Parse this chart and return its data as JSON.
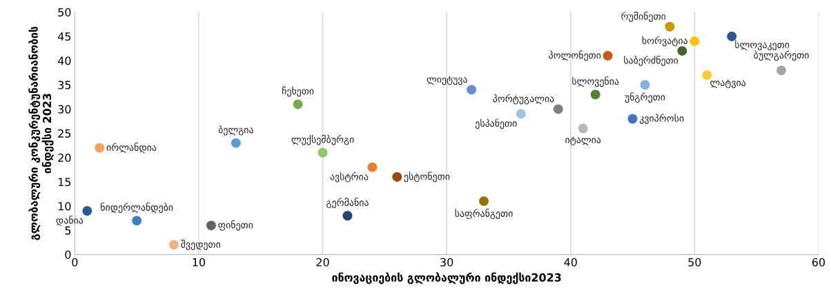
{
  "chart_data": {
    "type": "scatter",
    "xlabel": "ინოვაციების გლობალური ინდექსი2023",
    "ylabel": "გლობალური კონკურენტუნარიანობის\nინდექსი 2023",
    "xlim": [
      0,
      60
    ],
    "ylim": [
      0,
      50
    ],
    "xticks": [
      0,
      10,
      20,
      30,
      40,
      50,
      60
    ],
    "yticks": [
      0,
      5,
      10,
      15,
      20,
      25,
      30,
      35,
      40,
      45,
      50
    ],
    "grid": "x",
    "legend": false,
    "marker": "circle",
    "series": [
      {
        "name": "დანია",
        "color": "#255e91",
        "x": [
          1
        ],
        "values": [
          9
        ]
      },
      {
        "name": "ნიდერლანდები",
        "color": "#3c7dc4",
        "x": [
          5
        ],
        "values": [
          7
        ]
      },
      {
        "name": "შვედეთი",
        "color": "#f4b183",
        "x": [
          8
        ],
        "values": [
          2
        ]
      },
      {
        "name": "ფინეთი",
        "color": "#636363",
        "x": [
          11
        ],
        "values": [
          6
        ]
      },
      {
        "name": "ირლანდია",
        "color": "#f4a460",
        "x": [
          2
        ],
        "values": [
          22
        ]
      },
      {
        "name": "ბელგია",
        "color": "#5b9bd5",
        "x": [
          13
        ],
        "values": [
          23
        ]
      },
      {
        "name": "ჩეხეთი",
        "color": "#70ad47",
        "x": [
          18
        ],
        "values": [
          31
        ]
      },
      {
        "name": "ლუქსემბურგი",
        "color": "#8fc965",
        "x": [
          20
        ],
        "values": [
          21
        ]
      },
      {
        "name": "გერმანია",
        "color": "#264478",
        "x": [
          22
        ],
        "values": [
          8
        ]
      },
      {
        "name": "ავსტრია",
        "color": "#ed7d31",
        "x": [
          24
        ],
        "values": [
          18
        ]
      },
      {
        "name": "ესტონეთი",
        "color": "#9e480e",
        "x": [
          26
        ],
        "values": [
          16
        ]
      },
      {
        "name": "ლიეტუვა",
        "color": "#698ed0",
        "x": [
          32
        ],
        "values": [
          34
        ]
      },
      {
        "name": "საფრანგეთი",
        "color": "#997300",
        "x": [
          33
        ],
        "values": [
          11
        ]
      },
      {
        "name": "ესპანეთი",
        "color": "#9dc3e6",
        "x": [
          36
        ],
        "values": [
          29
        ]
      },
      {
        "name": "პორტუგალია",
        "color": "#7f7f7f",
        "x": [
          39
        ],
        "values": [
          30
        ]
      },
      {
        "name": "იტალია",
        "color": "#b7b7b7",
        "x": [
          41
        ],
        "values": [
          26
        ]
      },
      {
        "name": "სლოვენია",
        "color": "#548235",
        "x": [
          42
        ],
        "values": [
          33
        ]
      },
      {
        "name": "პოლონეთი",
        "color": "#c55a11",
        "x": [
          43
        ],
        "values": [
          41
        ]
      },
      {
        "name": "კვიპროსი",
        "color": "#4472c4",
        "x": [
          45
        ],
        "values": [
          28
        ]
      },
      {
        "name": "უნგრეთი",
        "color": "#7fb1e3",
        "x": [
          46
        ],
        "values": [
          35
        ]
      },
      {
        "name": "რუმინეთი",
        "color": "#cc9a00",
        "x": [
          48
        ],
        "values": [
          47
        ]
      },
      {
        "name": "საბერძნეთი",
        "color": "#3a6b2a",
        "x": [
          49
        ],
        "values": [
          42
        ]
      },
      {
        "name": "ხორვატია",
        "color": "#ffc000",
        "x": [
          50
        ],
        "values": [
          44
        ]
      },
      {
        "name": "ლატვია",
        "color": "#ffcd33",
        "x": [
          51
        ],
        "values": [
          37
        ]
      },
      {
        "name": "სლოვაკეთი",
        "color": "#2f5597",
        "x": [
          53
        ],
        "values": [
          45
        ]
      },
      {
        "name": "ბულგარეთი",
        "color": "#a5a5a5",
        "x": [
          57
        ],
        "values": [
          38
        ]
      }
    ]
  }
}
